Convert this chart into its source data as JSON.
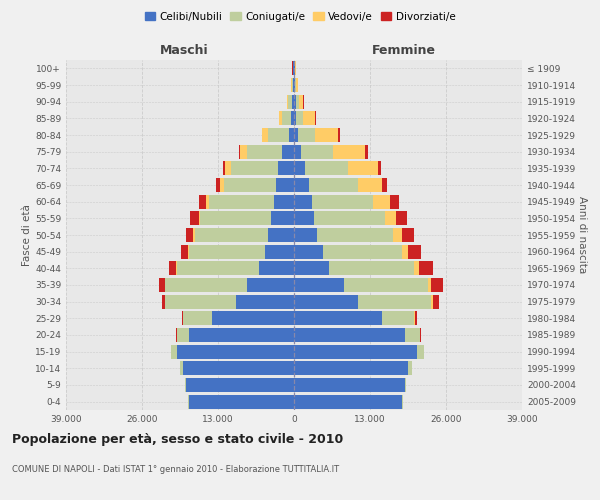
{
  "age_groups": [
    "0-4",
    "5-9",
    "10-14",
    "15-19",
    "20-24",
    "25-29",
    "30-34",
    "35-39",
    "40-44",
    "45-49",
    "50-54",
    "55-59",
    "60-64",
    "65-69",
    "70-74",
    "75-79",
    "80-84",
    "85-89",
    "90-94",
    "95-99",
    "100+"
  ],
  "birth_years": [
    "2005-2009",
    "2000-2004",
    "1995-1999",
    "1990-1994",
    "1985-1989",
    "1980-1984",
    "1975-1979",
    "1970-1974",
    "1965-1969",
    "1960-1964",
    "1955-1959",
    "1950-1954",
    "1945-1949",
    "1940-1944",
    "1935-1939",
    "1930-1934",
    "1925-1929",
    "1920-1924",
    "1915-1919",
    "1910-1914",
    "≤ 1909"
  ],
  "male": {
    "celibi": [
      18000,
      18500,
      19000,
      20000,
      18000,
      14000,
      10000,
      8000,
      6000,
      5000,
      4500,
      4000,
      3500,
      3000,
      2800,
      2000,
      900,
      500,
      400,
      200,
      100
    ],
    "coniugati": [
      100,
      200,
      500,
      1000,
      2000,
      5000,
      12000,
      14000,
      14000,
      13000,
      12500,
      12000,
      11000,
      9000,
      8000,
      6000,
      3500,
      1500,
      600,
      200,
      100
    ],
    "vedovi": [
      5,
      5,
      5,
      10,
      20,
      30,
      50,
      80,
      100,
      150,
      200,
      300,
      500,
      700,
      1000,
      1200,
      1000,
      500,
      200,
      80,
      50
    ],
    "divorziati": [
      5,
      5,
      10,
      30,
      80,
      200,
      500,
      1000,
      1200,
      1200,
      1200,
      1500,
      1200,
      700,
      400,
      200,
      100,
      50,
      30,
      20,
      10
    ]
  },
  "female": {
    "nubili": [
      18500,
      19000,
      19500,
      21000,
      19000,
      15000,
      11000,
      8500,
      6000,
      5000,
      4000,
      3500,
      3000,
      2500,
      1800,
      1200,
      600,
      400,
      300,
      200,
      100
    ],
    "coniugate": [
      100,
      200,
      600,
      1200,
      2500,
      5500,
      12500,
      14500,
      14500,
      13500,
      13000,
      12000,
      10500,
      8500,
      7500,
      5500,
      3000,
      1200,
      500,
      200,
      100
    ],
    "vedove": [
      5,
      10,
      15,
      30,
      80,
      150,
      300,
      500,
      800,
      1000,
      1500,
      2000,
      3000,
      4000,
      5000,
      5500,
      4000,
      2000,
      800,
      300,
      100
    ],
    "divorziate": [
      5,
      5,
      15,
      50,
      150,
      400,
      1000,
      2000,
      2500,
      2200,
      2000,
      1800,
      1500,
      900,
      600,
      400,
      200,
      80,
      30,
      20,
      10
    ]
  },
  "colors": {
    "celibi": "#4472C4",
    "coniugati": "#BFCE9E",
    "vedovi": "#FFCC66",
    "divorziati": "#CC2222"
  },
  "xlim": 39000,
  "xtick_labels": [
    "39.000",
    "26.000",
    "13.000",
    "0",
    "13.000",
    "26.000",
    "39.000"
  ],
  "title": "Popolazione per età, sesso e stato civile - 2010",
  "subtitle": "COMUNE DI NAPOLI - Dati ISTAT 1° gennaio 2010 - Elaborazione TUTTITALIA.IT",
  "ylabel_left": "Fasce di età",
  "ylabel_right": "Anni di nascita",
  "header_male": "Maschi",
  "header_female": "Femmine",
  "legend_labels": [
    "Celibi/Nubili",
    "Coniugati/e",
    "Vedovi/e",
    "Divorziati/e"
  ],
  "bg_color": "#f0f0f0",
  "plot_bg": "#e8e8e8"
}
